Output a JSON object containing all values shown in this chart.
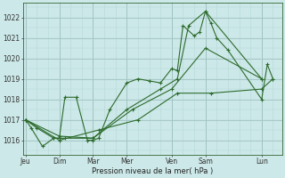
{
  "xlabel": "Pression niveau de la mer( hPa )",
  "bg_color": "#cce8e8",
  "grid_color_major": "#9dbfbf",
  "grid_color_minor": "#b8d8d8",
  "line_color": "#2d6b2d",
  "ylim": [
    1015.3,
    1022.7
  ],
  "yticks": [
    1016,
    1017,
    1018,
    1019,
    1020,
    1021,
    1022
  ],
  "day_labels": [
    "Jeu",
    "Dim",
    "Mar",
    "Mer",
    "Ven",
    "Sam",
    "Lun"
  ],
  "day_x": [
    0,
    3,
    6,
    9,
    13,
    16,
    21
  ],
  "xlim": [
    -0.2,
    22.8
  ],
  "series_data": {
    "line1_x": [
      0,
      0.5,
      1.5,
      2.5,
      3.0,
      3.5,
      4.5,
      5.5,
      6.0,
      6.5,
      7.5,
      9.0,
      10.0,
      11.0,
      12.0,
      13.0,
      13.5,
      14.0,
      15.0,
      15.5,
      16.0,
      16.5,
      17.0,
      18.0,
      21.0,
      21.5,
      22.0
    ],
    "line1_y": [
      1017.0,
      1016.6,
      1015.7,
      1016.1,
      1016.1,
      1018.1,
      1018.1,
      1016.0,
      1016.0,
      1016.1,
      1017.5,
      1018.8,
      1019.0,
      1018.9,
      1018.8,
      1019.5,
      1019.4,
      1021.6,
      1021.1,
      1021.3,
      1022.3,
      1021.7,
      1021.0,
      1020.4,
      1018.0,
      1019.7,
      1019.0
    ],
    "line2_x": [
      0,
      1.0,
      2.5,
      3.5,
      6.0,
      9.0,
      12.0,
      13.5,
      14.5,
      16.0,
      21.0
    ],
    "line2_y": [
      1017.0,
      1016.6,
      1016.1,
      1016.1,
      1016.1,
      1017.5,
      1018.5,
      1019.0,
      1021.6,
      1022.3,
      1019.0
    ],
    "line3_x": [
      0,
      3.0,
      6.0,
      9.5,
      13.0,
      16.0,
      21.0
    ],
    "line3_y": [
      1017.0,
      1016.2,
      1016.1,
      1017.5,
      1018.5,
      1020.5,
      1019.0
    ],
    "line4_x": [
      0,
      3.0,
      6.5,
      10.0,
      13.5,
      16.5,
      21.0,
      22.0
    ],
    "line4_y": [
      1017.0,
      1016.0,
      1016.5,
      1017.0,
      1018.3,
      1018.3,
      1018.5,
      1019.0
    ]
  },
  "xlabel_fontsize": 6.0,
  "tick_fontsize": 5.5
}
